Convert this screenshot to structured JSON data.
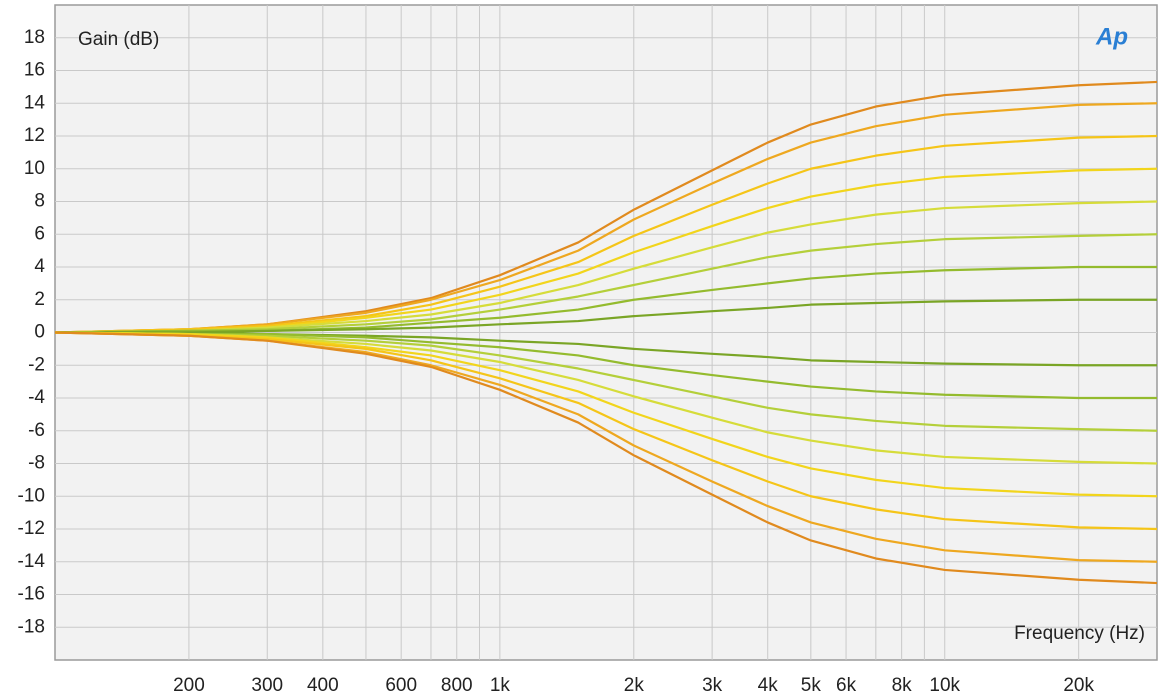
{
  "chart_data": {
    "type": "line",
    "y_label": "Gain (dB)",
    "x_label": "Frequency (Hz)",
    "logo": "Ap",
    "xscale": "log",
    "grid": true,
    "xlim": [
      100,
      30000
    ],
    "ylim": [
      -20,
      20
    ],
    "xticks": [
      200,
      300,
      400,
      600,
      800,
      {
        "value": 1000,
        "label": "1k"
      },
      {
        "value": 2000,
        "label": "2k"
      },
      {
        "value": 3000,
        "label": "3k"
      },
      {
        "value": 4000,
        "label": "4k"
      },
      {
        "value": 5000,
        "label": "5k"
      },
      {
        "value": 6000,
        "label": "6k"
      },
      {
        "value": 8000,
        "label": "8k"
      },
      {
        "value": 10000,
        "label": "10k"
      },
      {
        "value": 20000,
        "label": "20k"
      }
    ],
    "x_minor_grid": [
      500,
      700,
      900,
      7000,
      9000
    ],
    "yticks": [
      -18,
      -16,
      -14,
      -12,
      -10,
      -8,
      -6,
      -4,
      -2,
      0,
      2,
      4,
      6,
      8,
      10,
      12,
      14,
      16,
      18
    ],
    "x": [
      100,
      200,
      300,
      500,
      700,
      1000,
      1500,
      2000,
      3000,
      4000,
      5000,
      7000,
      10000,
      20000,
      30000
    ],
    "series": [
      {
        "color": "#e08a1e",
        "values": [
          0,
          0.2,
          0.5,
          1.3,
          2.1,
          3.5,
          5.5,
          7.5,
          9.9,
          11.6,
          12.7,
          13.8,
          14.5,
          15.1,
          15.3
        ]
      },
      {
        "color": "#eea820",
        "values": [
          0,
          0.2,
          0.5,
          1.2,
          2.0,
          3.2,
          5.0,
          6.9,
          9.1,
          10.6,
          11.6,
          12.6,
          13.3,
          13.9,
          14
        ]
      },
      {
        "color": "#f5c518",
        "values": [
          0,
          0.2,
          0.4,
          1.0,
          1.7,
          2.8,
          4.3,
          5.9,
          7.8,
          9.1,
          10.0,
          10.8,
          11.4,
          11.9,
          12
        ]
      },
      {
        "color": "#f2d51c",
        "values": [
          0,
          0.1,
          0.3,
          0.9,
          1.4,
          2.3,
          3.6,
          4.9,
          6.5,
          7.6,
          8.3,
          9.0,
          9.5,
          9.9,
          10
        ]
      },
      {
        "color": "#d6dc3a",
        "values": [
          0,
          0.1,
          0.3,
          0.7,
          1.1,
          1.8,
          2.9,
          3.9,
          5.2,
          6.1,
          6.6,
          7.2,
          7.6,
          7.9,
          8
        ]
      },
      {
        "color": "#b4cf3a",
        "values": [
          0,
          0.1,
          0.2,
          0.5,
          0.8,
          1.4,
          2.2,
          2.9,
          3.9,
          4.6,
          5.0,
          5.4,
          5.7,
          5.9,
          6
        ]
      },
      {
        "color": "#94bb2e",
        "values": [
          0,
          0.1,
          0.1,
          0.3,
          0.6,
          0.9,
          1.4,
          2.0,
          2.6,
          3.0,
          3.3,
          3.6,
          3.8,
          4.0,
          4
        ]
      },
      {
        "color": "#7aa526",
        "values": [
          0,
          0,
          0.1,
          0.2,
          0.3,
          0.5,
          0.7,
          1.0,
          1.3,
          1.5,
          1.7,
          1.8,
          1.9,
          2.0,
          2
        ]
      },
      {
        "color": "#7aa526",
        "values": [
          0,
          0,
          -0.1,
          -0.2,
          -0.3,
          -0.5,
          -0.7,
          -1.0,
          -1.3,
          -1.5,
          -1.7,
          -1.8,
          -1.9,
          -2.0,
          -2
        ]
      },
      {
        "color": "#94bb2e",
        "values": [
          0,
          -0.1,
          -0.1,
          -0.3,
          -0.6,
          -0.9,
          -1.4,
          -2.0,
          -2.6,
          -3.0,
          -3.3,
          -3.6,
          -3.8,
          -4.0,
          -4
        ]
      },
      {
        "color": "#b4cf3a",
        "values": [
          0,
          -0.1,
          -0.2,
          -0.5,
          -0.8,
          -1.4,
          -2.2,
          -2.9,
          -3.9,
          -4.6,
          -5.0,
          -5.4,
          -5.7,
          -5.9,
          -6
        ]
      },
      {
        "color": "#d6dc3a",
        "values": [
          0,
          -0.1,
          -0.3,
          -0.7,
          -1.1,
          -1.8,
          -2.9,
          -3.9,
          -5.2,
          -6.1,
          -6.6,
          -7.2,
          -7.6,
          -7.9,
          -8
        ]
      },
      {
        "color": "#f2d51c",
        "values": [
          0,
          -0.1,
          -0.3,
          -0.9,
          -1.4,
          -2.3,
          -3.6,
          -4.9,
          -6.5,
          -7.6,
          -8.3,
          -9.0,
          -9.5,
          -9.9,
          -10
        ]
      },
      {
        "color": "#f5c518",
        "values": [
          0,
          -0.2,
          -0.4,
          -1.0,
          -1.7,
          -2.8,
          -4.3,
          -5.9,
          -7.8,
          -9.1,
          -10.0,
          -10.8,
          -11.4,
          -11.9,
          -12
        ]
      },
      {
        "color": "#eea820",
        "values": [
          0,
          -0.2,
          -0.5,
          -1.2,
          -2.0,
          -3.2,
          -5.0,
          -6.9,
          -9.1,
          -10.6,
          -11.6,
          -12.6,
          -13.3,
          -13.9,
          -14
        ]
      },
      {
        "color": "#e08a1e",
        "values": [
          0,
          -0.2,
          -0.5,
          -1.3,
          -2.1,
          -3.5,
          -5.5,
          -7.5,
          -9.9,
          -11.6,
          -12.7,
          -13.8,
          -14.5,
          -15.1,
          -15.3
        ]
      }
    ]
  }
}
